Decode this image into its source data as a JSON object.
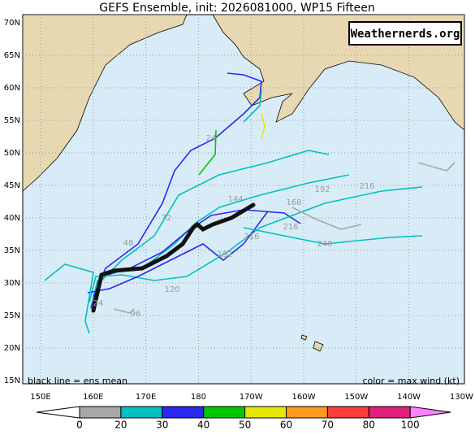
{
  "title": "GEFS Ensemble, init: 2026081000, WP15 Fifteen",
  "watermark": "Weathernerds.org",
  "lat_labels": [
    "70N",
    "65N",
    "60N",
    "55N",
    "50N",
    "45N",
    "40N",
    "35N",
    "30N",
    "25N",
    "20N",
    "15N"
  ],
  "lon_labels": [
    "150E",
    "160E",
    "170E",
    "180",
    "170W",
    "160W",
    "150W",
    "140W",
    "130W"
  ],
  "legend_left": "black line = ens mean",
  "legend_right": "color = max wind (kt)",
  "colorbar": {
    "labels": [
      "0",
      "20",
      "30",
      "40",
      "50",
      "60",
      "70",
      "80",
      "100"
    ],
    "colors": [
      "#a8a8a8",
      "#00c0c0",
      "#2828f0",
      "#00c800",
      "#e6e600",
      "#ff9a1e",
      "#ff3c3c",
      "#e0207a"
    ]
  },
  "hour_labels": [
    "24",
    "144",
    "168",
    "192",
    "216",
    "216",
    "240",
    "216",
    "192",
    "120",
    "96",
    "24",
    "48",
    "72"
  ]
}
